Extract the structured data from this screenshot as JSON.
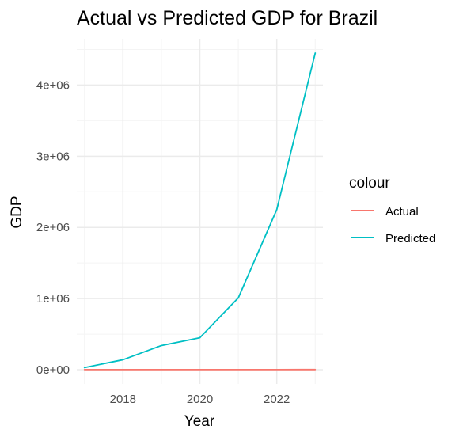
{
  "chart_data": {
    "type": "line",
    "title": "Actual vs Predicted GDP for Brazil",
    "xlabel": "Year",
    "ylabel": "GDP",
    "x": [
      2017,
      2018,
      2019,
      2020,
      2021,
      2022,
      2023
    ],
    "xlim": [
      2016.8,
      2023.2
    ],
    "ylim": [
      -200000,
      4650000
    ],
    "x_ticks": [
      2018,
      2020,
      2022
    ],
    "x_tick_labels": [
      "2018",
      "2020",
      "2022"
    ],
    "x_minor_ticks": [
      2017,
      2019,
      2021,
      2023
    ],
    "y_ticks": [
      0,
      1000000,
      2000000,
      3000000,
      4000000
    ],
    "y_tick_labels": [
      "0e+00",
      "1e+06",
      "2e+06",
      "3e+06",
      "4e+06"
    ],
    "y_minor_ticks": [
      500000,
      1500000,
      2500000,
      3500000,
      4500000
    ],
    "grid": true,
    "legend": {
      "title": "colour",
      "position": "right"
    },
    "series": [
      {
        "name": "Actual",
        "color": "#F8766D",
        "values": [
          1800,
          1900,
          1850,
          1450,
          1650,
          1950,
          2150
        ]
      },
      {
        "name": "Predicted",
        "color": "#00BFC4",
        "values": [
          30000,
          140000,
          340000,
          450000,
          1010000,
          2250000,
          4450000
        ]
      }
    ]
  },
  "theme": {
    "background": "#FFFFFF",
    "grid_major": "#EBEBEB",
    "grid_minor": "#F4F4F4",
    "text": "#000000",
    "tick_text": "#4D4D4D"
  }
}
